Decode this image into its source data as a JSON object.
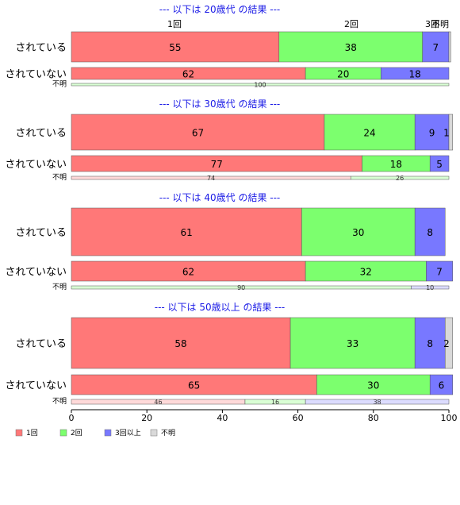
{
  "chart_data": {
    "type": "bar",
    "orientation": "horizontal-stacked-percent",
    "xlim": [
      0,
      100
    ],
    "xticks": [
      0,
      20,
      40,
      60,
      80,
      100
    ],
    "categories": [
      "1回",
      "2回",
      "3回以上",
      "不明"
    ],
    "colors": [
      "#ff7878",
      "#7cff6e",
      "#7878ff",
      "#d9d9d9"
    ],
    "top_labels": [
      "1回",
      "2回",
      "3回",
      "不明"
    ],
    "groups": [
      {
        "title": "--- 以下は 20歳代 の結果 ---",
        "rows": [
          {
            "label": "されている",
            "values": [
              55,
              38,
              7,
              0.5
            ],
            "texts": [
              "55",
              "38",
              "7",
              ""
            ]
          },
          {
            "label": "されていない",
            "values": [
              62,
              20,
              18,
              0
            ],
            "texts": [
              "62",
              "20",
              "18",
              ""
            ]
          },
          {
            "label": "不明",
            "values": [
              0,
              100,
              0,
              0
            ],
            "texts": [
              "",
              "100",
              "",
              ""
            ]
          }
        ]
      },
      {
        "title": "--- 以下は 30歳代 の結果 ---",
        "rows": [
          {
            "label": "されている",
            "values": [
              67,
              24,
              9,
              1
            ],
            "texts": [
              "67",
              "24",
              "9",
              "1"
            ]
          },
          {
            "label": "されていない",
            "values": [
              77,
              18,
              5,
              0
            ],
            "texts": [
              "77",
              "18",
              "5",
              ""
            ]
          },
          {
            "label": "不明",
            "values": [
              74,
              26,
              0,
              0
            ],
            "texts": [
              "74",
              "26",
              "",
              ""
            ]
          }
        ]
      },
      {
        "title": "--- 以下は 40歳代 の結果 ---",
        "rows": [
          {
            "label": "されている",
            "values": [
              61,
              30,
              8,
              0
            ],
            "texts": [
              "61",
              "30",
              "8",
              ""
            ]
          },
          {
            "label": "されていない",
            "values": [
              62,
              32,
              7,
              0
            ],
            "texts": [
              "62",
              "32",
              "7",
              ""
            ]
          },
          {
            "label": "不明",
            "values": [
              0,
              90,
              10,
              0
            ],
            "texts": [
              "",
              "90",
              "10",
              ""
            ]
          }
        ]
      },
      {
        "title": "--- 以下は 50歳以上 の結果 ---",
        "rows": [
          {
            "label": "されている",
            "values": [
              58,
              33,
              8,
              2
            ],
            "texts": [
              "58",
              "33",
              "8",
              "2"
            ]
          },
          {
            "label": "されていない",
            "values": [
              65,
              30,
              6,
              0
            ],
            "texts": [
              "65",
              "30",
              "6",
              ""
            ]
          },
          {
            "label": "不明",
            "values": [
              46,
              16,
              38,
              0
            ],
            "texts": [
              "46",
              "16",
              "38",
              ""
            ]
          }
        ]
      }
    ],
    "legend": [
      "1回",
      "2回",
      "3回以上",
      "不明"
    ],
    "legend_position": "bottom-left"
  }
}
